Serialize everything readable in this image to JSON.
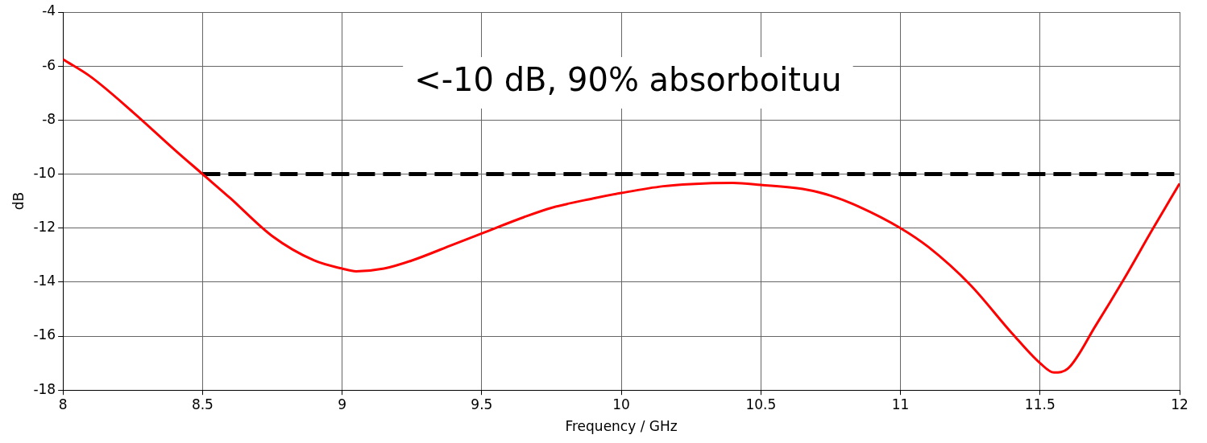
{
  "chart_data": {
    "type": "line",
    "xlabel": "Frequency / GHz",
    "ylabel": "dB",
    "annotations": [
      "<-10 dB, 90% absorboituu"
    ],
    "xlim": [
      8,
      12
    ],
    "xticks": [
      8,
      8.5,
      9,
      9.5,
      10,
      10.5,
      11,
      11.5,
      12
    ],
    "ylim": [
      -18,
      -4
    ],
    "yticks": [
      -18,
      -16,
      -14,
      -12,
      -10,
      -8,
      -6,
      -4
    ],
    "grid": true,
    "legend": false,
    "marker": "none",
    "series": [
      {
        "color": "#ff0000",
        "line_style": "solid",
        "x": [
          8,
          8.1,
          8.25,
          8.4,
          8.5,
          8.6,
          8.75,
          8.9,
          9,
          9.05,
          9.15,
          9.25,
          9.4,
          9.5,
          9.65,
          9.75,
          9.9,
          10,
          10.15,
          10.25,
          10.4,
          10.5,
          10.65,
          10.75,
          10.85,
          11,
          11.1,
          11.25,
          11.4,
          11.5,
          11.55,
          11.6,
          11.7,
          11.8,
          11.9,
          12
        ],
        "values": [
          -5.75,
          -6.4,
          -7.7,
          -9.1,
          -10,
          -10.9,
          -12.3,
          -13.2,
          -13.5,
          -13.6,
          -13.5,
          -13.2,
          -12.6,
          -12.2,
          -11.6,
          -11.25,
          -10.9,
          -10.7,
          -10.45,
          -10.37,
          -10.33,
          -10.4,
          -10.55,
          -10.8,
          -11.2,
          -12,
          -12.7,
          -14.1,
          -15.9,
          -17.0,
          -17.35,
          -17.2,
          -15.6,
          -13.9,
          -12.1,
          -10.35
        ]
      },
      {
        "type": "line",
        "color": "#000000",
        "line_style": "dashed",
        "x": [
          8.5,
          12
        ],
        "values": [
          -10,
          -10
        ]
      }
    ]
  }
}
